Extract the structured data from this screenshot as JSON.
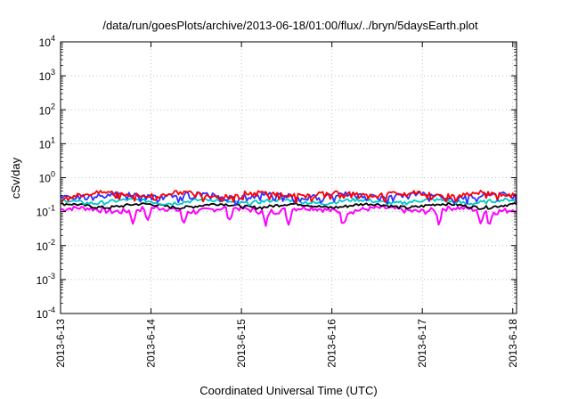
{
  "chart_data": {
    "type": "line",
    "title": "/data/run/goesPlots/archive/2013-06-18/01:00/flux/../bryn/5daysEarth.plot",
    "xlabel": "Coordinated Universal Time (UTC)",
    "ylabel": "cSv/day",
    "yscale": "log",
    "ylim": [
      0.0001,
      10000
    ],
    "ytick_base": "10",
    "yticks_exp": [
      "-4",
      "-3",
      "-2",
      "-1",
      "0",
      "1",
      "2",
      "3",
      "4"
    ],
    "xlim": [
      "2013-06-13",
      "2013-06-18 01:00"
    ],
    "xticks": [
      "2013-6-13",
      "2013-6-14",
      "2013-6-15",
      "2013-6-16",
      "2013-6-17",
      "2013-6-18"
    ],
    "grid": true,
    "series": [
      {
        "color": "#ff00ff",
        "base": 0.115,
        "amp": 0.02
      },
      {
        "color": "#000000",
        "base": 0.15,
        "amp": 0.015
      },
      {
        "color": "#00c8c8",
        "base": 0.2,
        "amp": 0.025
      },
      {
        "color": "#3030ff",
        "base": 0.3,
        "amp": 0.05
      },
      {
        "color": "#ff0000",
        "base": 0.33,
        "amp": 0.05
      }
    ]
  }
}
